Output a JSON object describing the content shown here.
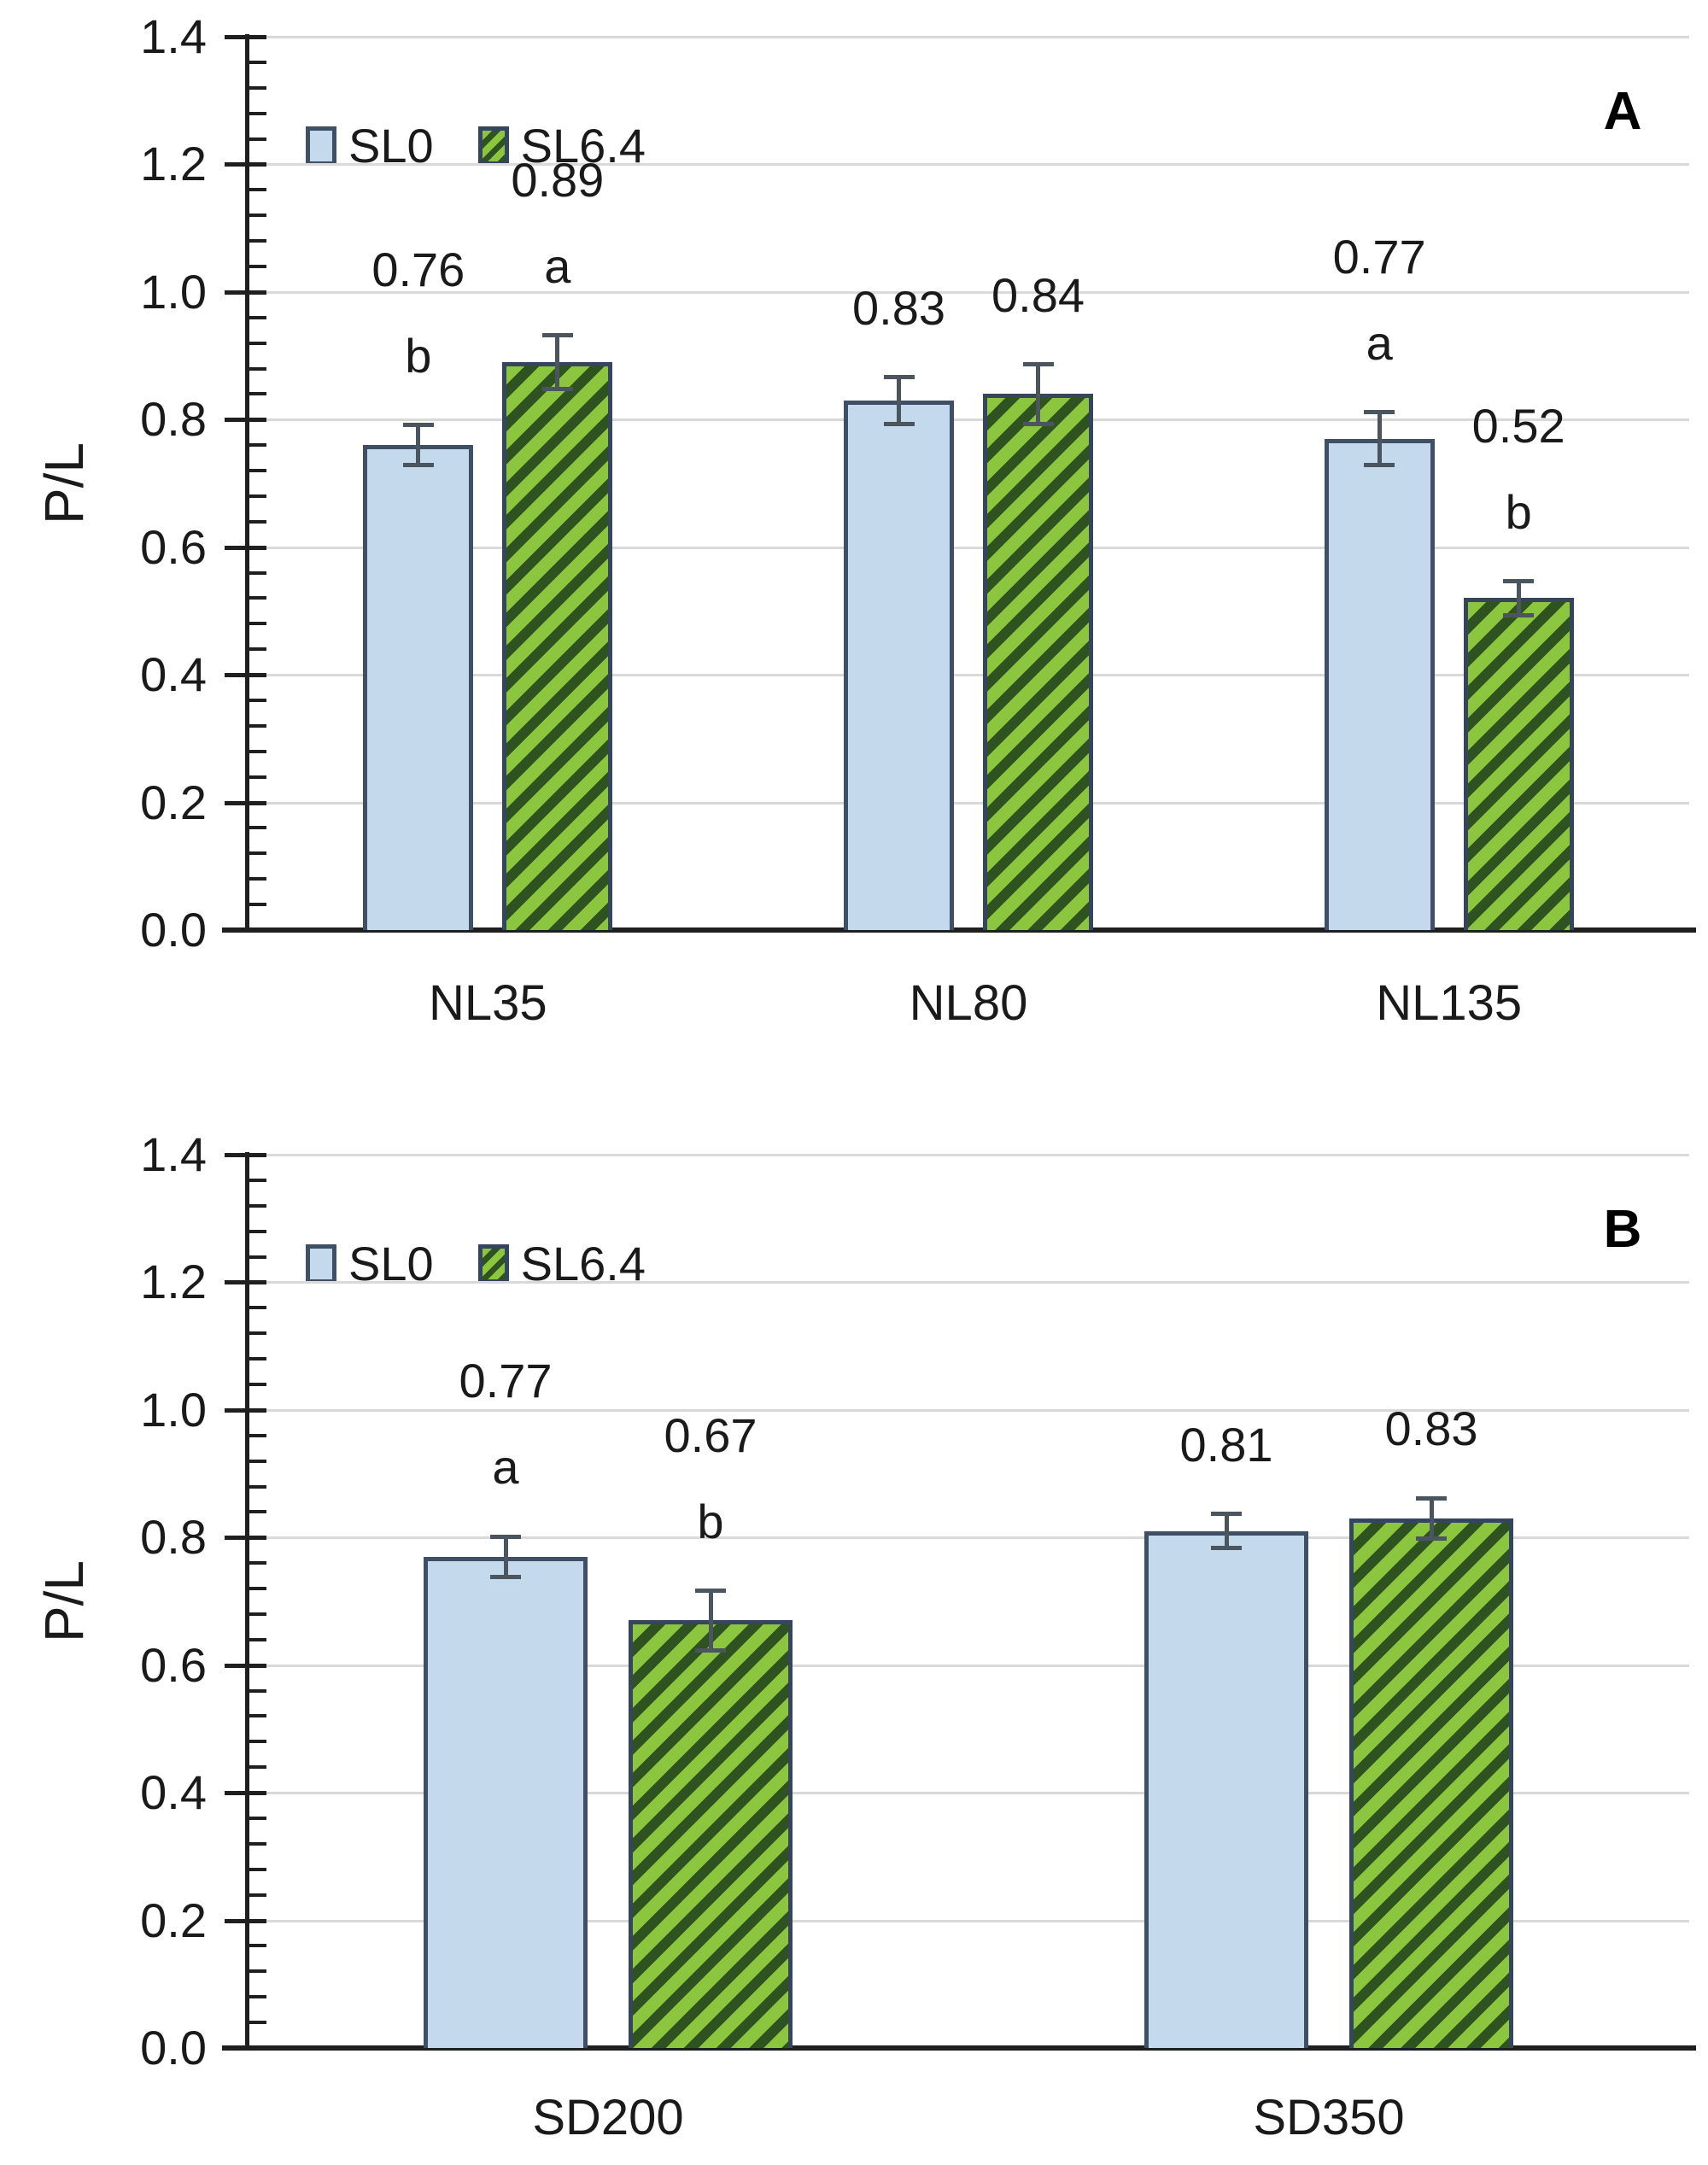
{
  "figure": {
    "description": "Two stacked grouped bar chart panels comparing P/L ratio for SL0 vs SL6.4 treatments",
    "background": "#ffffff"
  },
  "colors": {
    "sl0_fill": "#c5d9ec",
    "sl0_border": "#3e4f66",
    "sl64_fill": "#8cc63f",
    "sl64_stripe": "#2e5220",
    "sl64_border": "#36455e",
    "error_bar": "#4a5560",
    "gridline": "#d9d9d9",
    "axis": "#1f1f1f",
    "text": "#1a1a1a"
  },
  "chart_data": [
    {
      "type": "bar",
      "panel_label": "A",
      "title": "",
      "xlabel": "",
      "ylabel": "P/L",
      "ylim": [
        0.0,
        1.4
      ],
      "ytick_labels": [
        "0.0",
        "0.2",
        "0.4",
        "0.6",
        "0.8",
        "1.0",
        "1.2",
        "1.4"
      ],
      "ytick_step": 0.2,
      "minor_tick_step": 0.04,
      "grid": true,
      "legend_position": "top-left-inside",
      "legend": [
        "SL0",
        "SL6.4"
      ],
      "categories": [
        "NL35",
        "NL80",
        "NL135"
      ],
      "series": [
        {
          "name": "SL0",
          "values": [
            0.76,
            0.83,
            0.77
          ],
          "value_labels": [
            "0.76",
            "0.83",
            "0.77"
          ],
          "errors": [
            0.035,
            0.04,
            0.045
          ],
          "sig_letters": [
            "b",
            "",
            "a"
          ]
        },
        {
          "name": "SL6.4",
          "values": [
            0.89,
            0.84,
            0.52
          ],
          "value_labels": [
            "0.89",
            "0.84",
            "0.52"
          ],
          "errors": [
            0.045,
            0.05,
            0.03
          ],
          "sig_letters": [
            "a",
            "",
            "b"
          ]
        }
      ]
    },
    {
      "type": "bar",
      "panel_label": "B",
      "title": "",
      "xlabel": "",
      "ylabel": "P/L",
      "ylim": [
        0.0,
        1.4
      ],
      "ytick_labels": [
        "0.0",
        "0.2",
        "0.4",
        "0.6",
        "0.8",
        "1.0",
        "1.2",
        "1.4"
      ],
      "ytick_step": 0.2,
      "minor_tick_step": 0.04,
      "grid": true,
      "legend_position": "top-left-inside",
      "legend": [
        "SL0",
        "SL6.4"
      ],
      "categories": [
        "SD200",
        "SD350"
      ],
      "series": [
        {
          "name": "SL0",
          "values": [
            0.77,
            0.81
          ],
          "value_labels": [
            "0.77",
            "0.81"
          ],
          "errors": [
            0.035,
            0.03
          ],
          "sig_letters": [
            "a",
            ""
          ]
        },
        {
          "name": "SL6.4",
          "values": [
            0.67,
            0.83
          ],
          "value_labels": [
            "0.67",
            "0.83"
          ],
          "errors": [
            0.05,
            0.035
          ],
          "sig_letters": [
            "b",
            ""
          ]
        }
      ]
    }
  ]
}
